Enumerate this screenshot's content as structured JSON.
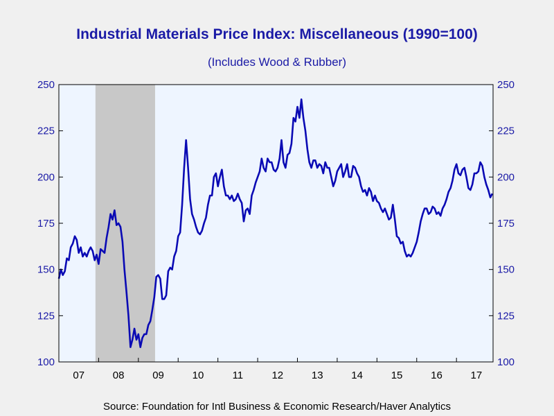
{
  "chart_data": {
    "type": "line",
    "title": "Industrial Materials Price Index: Miscellaneous (1990=100)",
    "subtitle": "(Includes Wood & Rubber)",
    "source": "Source:  Foundation for Intl Business & Economic Research/Haver Analytics",
    "ylim": [
      100,
      250
    ],
    "yticks": [
      100,
      125,
      150,
      175,
      200,
      225,
      250
    ],
    "xlim": [
      2007.0,
      2017.92
    ],
    "year_labels": [
      {
        "label": "07",
        "center": 2007.5
      },
      {
        "label": "08",
        "center": 2008.5
      },
      {
        "label": "09",
        "center": 2009.5
      },
      {
        "label": "10",
        "center": 2010.5
      },
      {
        "label": "11",
        "center": 2011.5
      },
      {
        "label": "12",
        "center": 2012.5
      },
      {
        "label": "13",
        "center": 2013.5
      },
      {
        "label": "14",
        "center": 2014.5
      },
      {
        "label": "15",
        "center": 2015.5
      },
      {
        "label": "16",
        "center": 2016.5
      },
      {
        "label": "17",
        "center": 2017.5
      }
    ],
    "recession_shading": [
      [
        2007.92,
        2009.42
      ]
    ],
    "grid": false,
    "colors": {
      "line": "#0a0ab4",
      "text": "#1a1aa6",
      "plot_bg": "#eef5ff",
      "recession": "#c8c8c8"
    },
    "series": [
      {
        "x": [
          2007.0,
          2007.05,
          2007.1,
          2007.15,
          2007.2,
          2007.25,
          2007.3,
          2007.35,
          2007.4,
          2007.45,
          2007.5,
          2007.55,
          2007.6,
          2007.65,
          2007.7,
          2007.75,
          2007.8,
          2007.85,
          2007.9,
          2007.95,
          2008.0,
          2008.05,
          2008.1,
          2008.15,
          2008.2,
          2008.25,
          2008.3,
          2008.35,
          2008.4,
          2008.45,
          2008.5,
          2008.55,
          2008.6,
          2008.65,
          2008.7,
          2008.75,
          2008.8,
          2008.85,
          2008.9,
          2008.95,
          2009.0,
          2009.05,
          2009.1,
          2009.15,
          2009.2,
          2009.25,
          2009.3,
          2009.35,
          2009.4,
          2009.45,
          2009.5,
          2009.55,
          2009.6,
          2009.65,
          2009.7,
          2009.75,
          2009.8,
          2009.85,
          2009.9,
          2009.95,
          2010.0,
          2010.05,
          2010.1,
          2010.15,
          2010.2,
          2010.25,
          2010.3,
          2010.35,
          2010.4,
          2010.45,
          2010.5,
          2010.55,
          2010.6,
          2010.65,
          2010.7,
          2010.75,
          2010.8,
          2010.85,
          2010.9,
          2010.95,
          2011.0,
          2011.05,
          2011.1,
          2011.15,
          2011.2,
          2011.25,
          2011.3,
          2011.35,
          2011.4,
          2011.45,
          2011.5,
          2011.55,
          2011.6,
          2011.65,
          2011.7,
          2011.75,
          2011.8,
          2011.85,
          2011.9,
          2011.95,
          2012.0,
          2012.05,
          2012.1,
          2012.15,
          2012.2,
          2012.25,
          2012.3,
          2012.35,
          2012.4,
          2012.45,
          2012.5,
          2012.55,
          2012.6,
          2012.65,
          2012.7,
          2012.75,
          2012.8,
          2012.85,
          2012.9,
          2012.95,
          2013.0,
          2013.05,
          2013.1,
          2013.15,
          2013.2,
          2013.25,
          2013.3,
          2013.35,
          2013.4,
          2013.45,
          2013.5,
          2013.55,
          2013.6,
          2013.65,
          2013.7,
          2013.75,
          2013.8,
          2013.85,
          2013.9,
          2013.95,
          2014.0,
          2014.05,
          2014.1,
          2014.15,
          2014.2,
          2014.25,
          2014.3,
          2014.35,
          2014.4,
          2014.45,
          2014.5,
          2014.55,
          2014.6,
          2014.65,
          2014.7,
          2014.75,
          2014.8,
          2014.85,
          2014.9,
          2014.95,
          2015.0,
          2015.05,
          2015.1,
          2015.15,
          2015.2,
          2015.25,
          2015.3,
          2015.35,
          2015.4,
          2015.45,
          2015.5,
          2015.55,
          2015.6,
          2015.65,
          2015.7,
          2015.75,
          2015.8,
          2015.85,
          2015.9,
          2015.95,
          2016.0,
          2016.05,
          2016.1,
          2016.15,
          2016.2,
          2016.25,
          2016.3,
          2016.35,
          2016.4,
          2016.45,
          2016.5,
          2016.55,
          2016.6,
          2016.65,
          2016.7,
          2016.75,
          2016.8,
          2016.85,
          2016.9,
          2016.95,
          2017.0,
          2017.05,
          2017.1,
          2017.15,
          2017.2,
          2017.25,
          2017.3,
          2017.35,
          2017.4,
          2017.45,
          2017.5,
          2017.55,
          2017.6,
          2017.65,
          2017.7,
          2017.75,
          2017.8,
          2017.85,
          2017.9
        ],
        "values": [
          145,
          150,
          147,
          149,
          156,
          155,
          162,
          164,
          168,
          166,
          159,
          162,
          157,
          159,
          157,
          160,
          162,
          160,
          155,
          158,
          153,
          161,
          160,
          159,
          167,
          173,
          180,
          177,
          182,
          174,
          175,
          173,
          165,
          150,
          138,
          125,
          108,
          112,
          118,
          112,
          115,
          108,
          113,
          115,
          115,
          120,
          122,
          128,
          135,
          146,
          147,
          145,
          134,
          134,
          136,
          149,
          151,
          150,
          157,
          160,
          168,
          170,
          185,
          205,
          220,
          205,
          188,
          180,
          177,
          173,
          170,
          169,
          171,
          175,
          178,
          185,
          190,
          190,
          200,
          202,
          195,
          200,
          204,
          195,
          190,
          190,
          188,
          190,
          187,
          188,
          191,
          188,
          186,
          176,
          182,
          183,
          180,
          190,
          193,
          197,
          200,
          203,
          210,
          205,
          203,
          210,
          208,
          208,
          204,
          203,
          205,
          210,
          220,
          208,
          205,
          212,
          213,
          218,
          232,
          230,
          238,
          232,
          242,
          232,
          225,
          215,
          208,
          205,
          209,
          209,
          205,
          207,
          206,
          202,
          208,
          205,
          205,
          200,
          195,
          198,
          203,
          205,
          207,
          200,
          203,
          207,
          200,
          200,
          206,
          205,
          202,
          200,
          195,
          192,
          193,
          190,
          194,
          192,
          187,
          190,
          187,
          186,
          183,
          181,
          183,
          180,
          177,
          178,
          185,
          177,
          168,
          167,
          164,
          165,
          160,
          157,
          158,
          157,
          159,
          162,
          165,
          170,
          176,
          180,
          183,
          183,
          180,
          181,
          184,
          183,
          180,
          181,
          179,
          183,
          185,
          188,
          192,
          194,
          198,
          204,
          207,
          202,
          201,
          204,
          205,
          200,
          194,
          193,
          196,
          202,
          202,
          203,
          208,
          206,
          200,
          196,
          193,
          189,
          191
        ]
      }
    ]
  }
}
